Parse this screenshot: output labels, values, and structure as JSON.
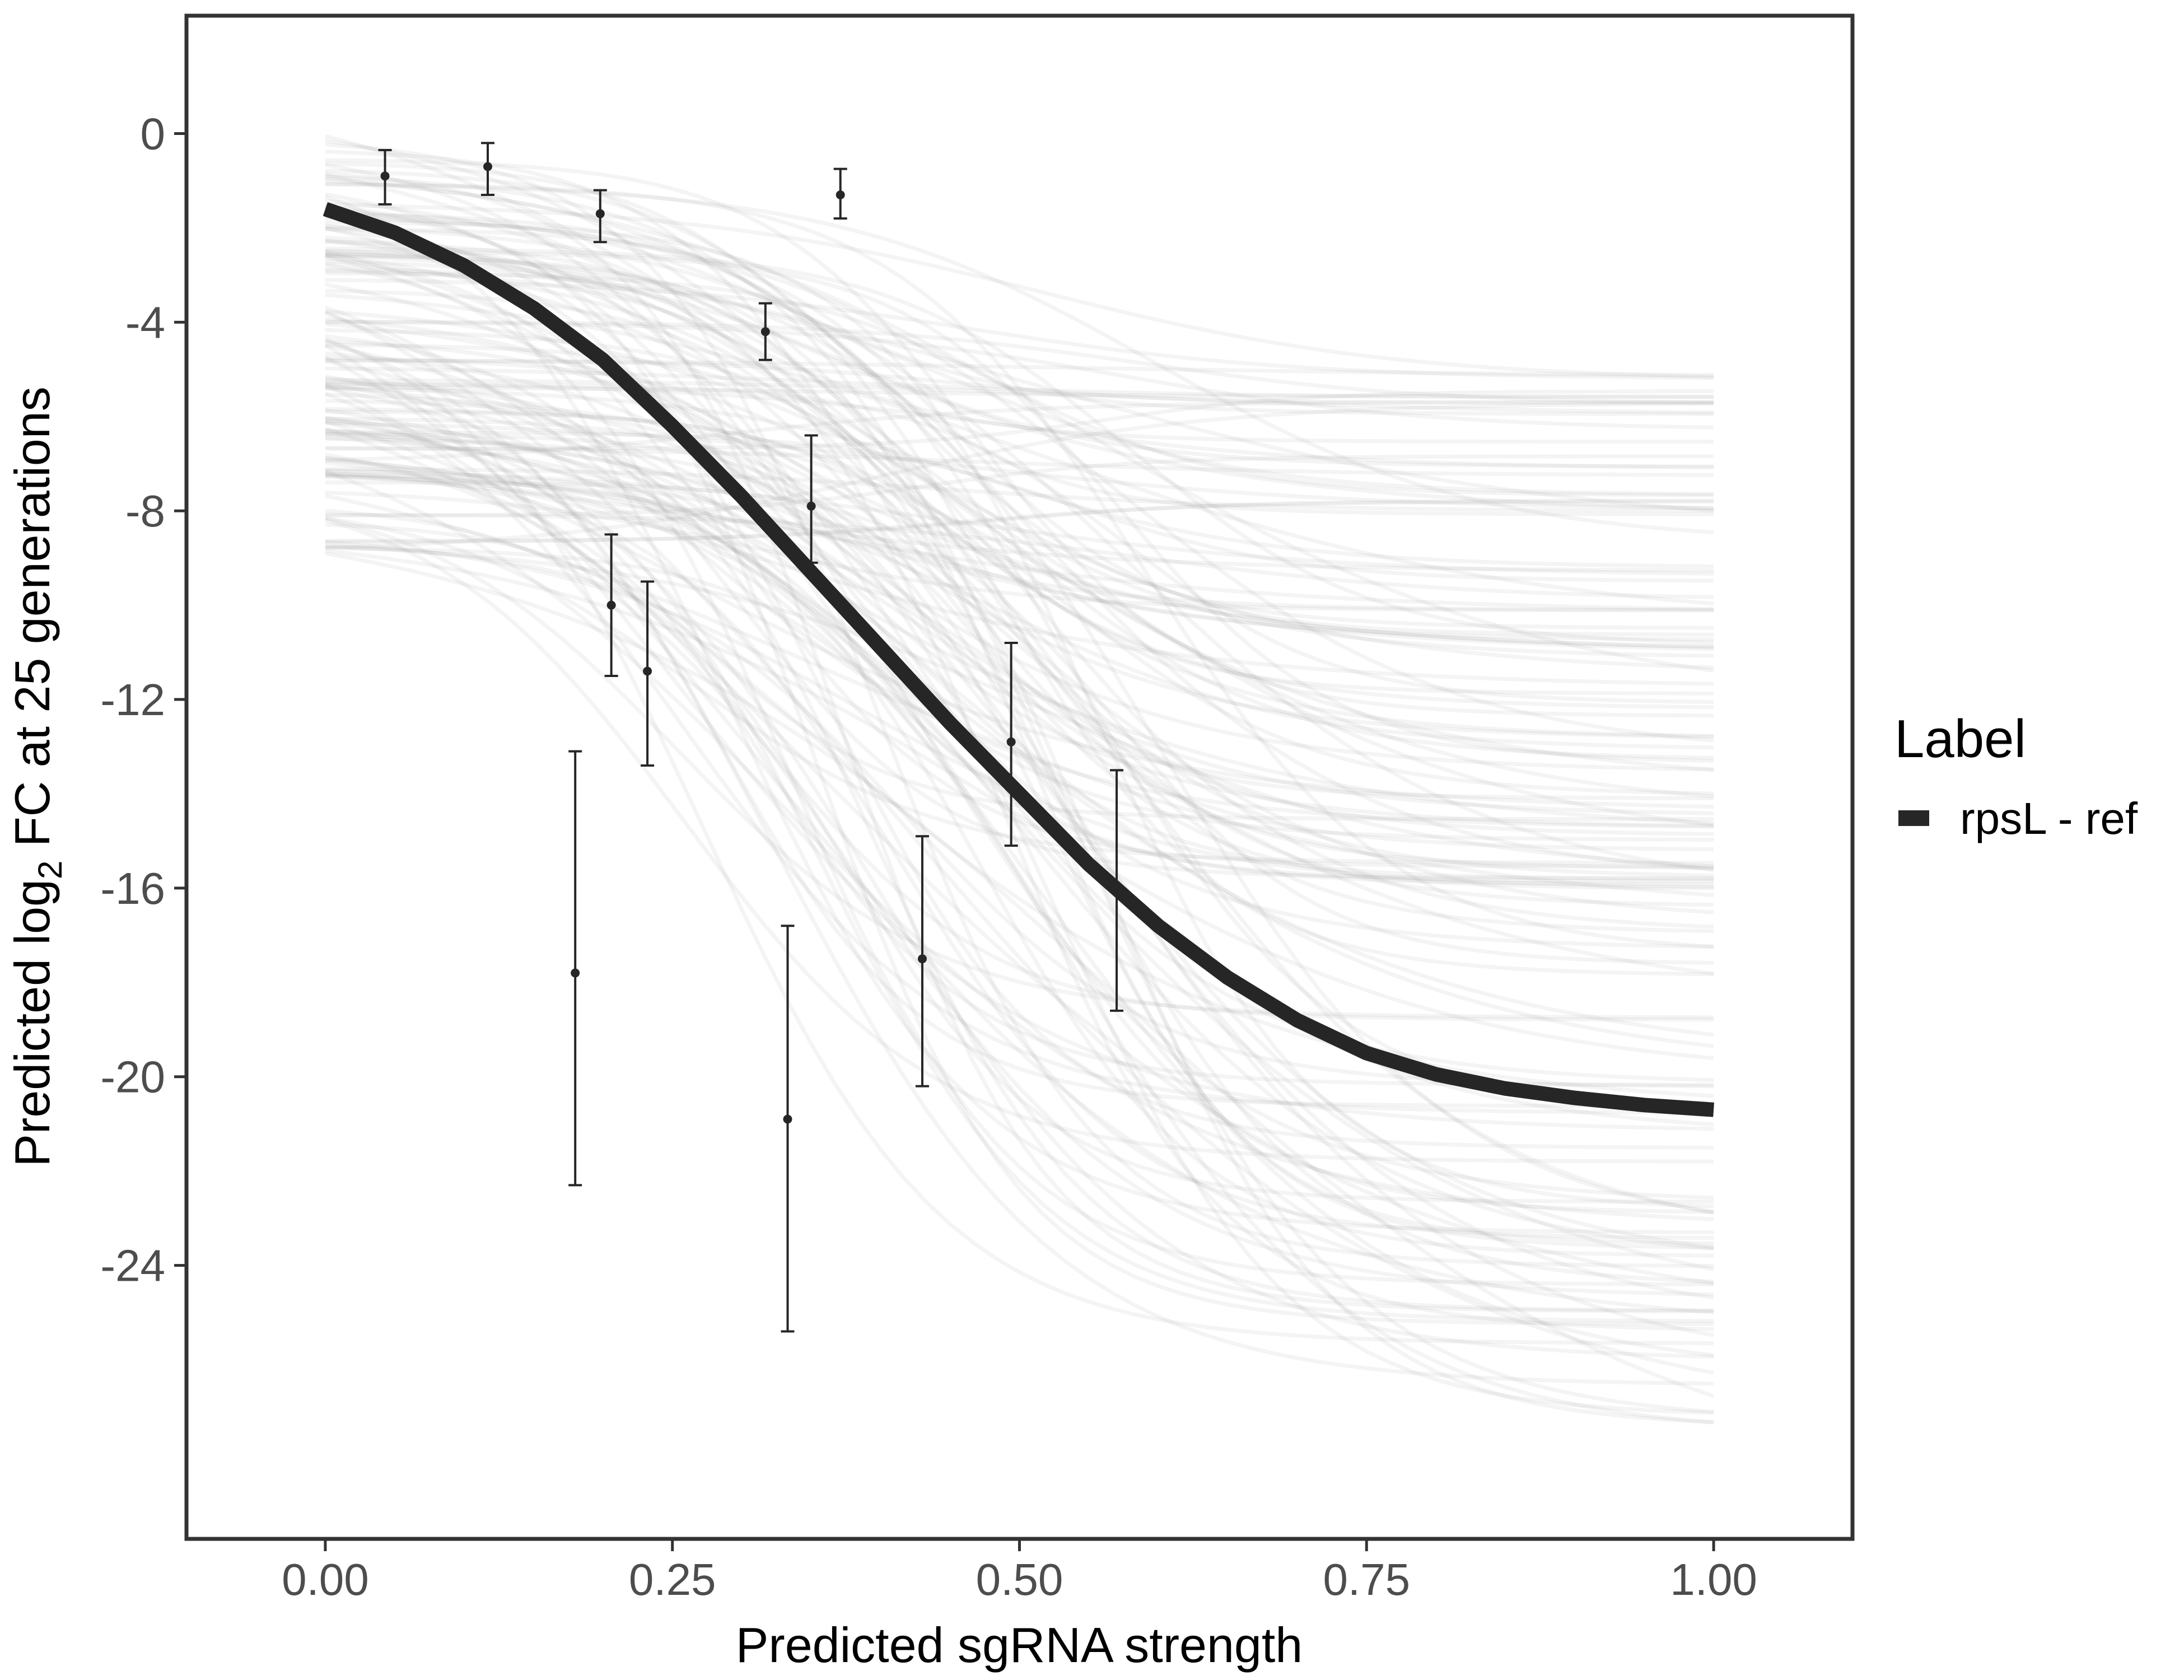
{
  "chart_data": {
    "type": "line",
    "title": "",
    "xlabel": "Predicted sgRNA strength",
    "ylabel": {
      "prefix": "Predicted  log",
      "subscript": "2",
      "suffix": " FC at 25 generations"
    },
    "xlim": [
      -0.1,
      1.1
    ],
    "ylim": [
      -29.8,
      2.5
    ],
    "x_ticks": [
      {
        "value": 0.0,
        "label": "0.00"
      },
      {
        "value": 0.25,
        "label": "0.25"
      },
      {
        "value": 0.5,
        "label": "0.50"
      },
      {
        "value": 0.75,
        "label": "0.75"
      },
      {
        "value": 1.0,
        "label": "1.00"
      }
    ],
    "y_ticks": [
      {
        "value": 0,
        "label": "0"
      },
      {
        "value": -4,
        "label": "-4"
      },
      {
        "value": -8,
        "label": "-8"
      },
      {
        "value": -12,
        "label": "-12"
      },
      {
        "value": -16,
        "label": "-16"
      },
      {
        "value": -20,
        "label": "-20"
      },
      {
        "value": -24,
        "label": "-24"
      }
    ],
    "grid": false,
    "legend": {
      "title": "Label",
      "position": "right",
      "entries": [
        {
          "label": "rpsL - ref",
          "color": "#262626"
        }
      ]
    },
    "fit_curve": {
      "name": "rpsL - ref",
      "color": "#262626",
      "x": [
        0.0,
        0.05,
        0.1,
        0.15,
        0.2,
        0.25,
        0.3,
        0.35,
        0.4,
        0.45,
        0.5,
        0.55,
        0.6,
        0.65,
        0.7,
        0.75,
        0.8,
        0.85,
        0.9,
        0.95,
        1.0
      ],
      "y": [
        -1.6,
        -2.1,
        -2.8,
        -3.7,
        -4.8,
        -6.2,
        -7.7,
        -9.3,
        -10.9,
        -12.5,
        -14.0,
        -15.5,
        -16.8,
        -17.9,
        -18.8,
        -19.5,
        -19.95,
        -20.25,
        -20.45,
        -20.6,
        -20.7
      ]
    },
    "posterior_draws": {
      "description_count": 150,
      "color": "#a6a6a6",
      "opacity": 0.12,
      "floor": -28
    },
    "error_points": [
      {
        "x": 0.043,
        "y": -0.9,
        "ymin": -1.5,
        "ymax": -0.35
      },
      {
        "x": 0.117,
        "y": -0.7,
        "ymin": -1.3,
        "ymax": -0.2
      },
      {
        "x": 0.198,
        "y": -1.7,
        "ymin": -2.3,
        "ymax": -1.2
      },
      {
        "x": 0.18,
        "y": -17.8,
        "ymin": -22.3,
        "ymax": -13.1
      },
      {
        "x": 0.206,
        "y": -10.0,
        "ymin": -11.5,
        "ymax": -8.5
      },
      {
        "x": 0.232,
        "y": -11.4,
        "ymin": -13.4,
        "ymax": -9.5
      },
      {
        "x": 0.317,
        "y": -4.2,
        "ymin": -4.8,
        "ymax": -3.6
      },
      {
        "x": 0.333,
        "y": -20.9,
        "ymin": -25.4,
        "ymax": -16.8
      },
      {
        "x": 0.35,
        "y": -7.9,
        "ymin": -9.1,
        "ymax": -6.4
      },
      {
        "x": 0.371,
        "y": -1.3,
        "ymin": -1.8,
        "ymax": -0.75
      },
      {
        "x": 0.43,
        "y": -17.5,
        "ymin": -20.2,
        "ymax": -14.9
      },
      {
        "x": 0.494,
        "y": -12.9,
        "ymin": -15.1,
        "ymax": -10.8
      },
      {
        "x": 0.57,
        "y": -16.0,
        "ymin": -18.6,
        "ymax": -13.5
      }
    ]
  }
}
